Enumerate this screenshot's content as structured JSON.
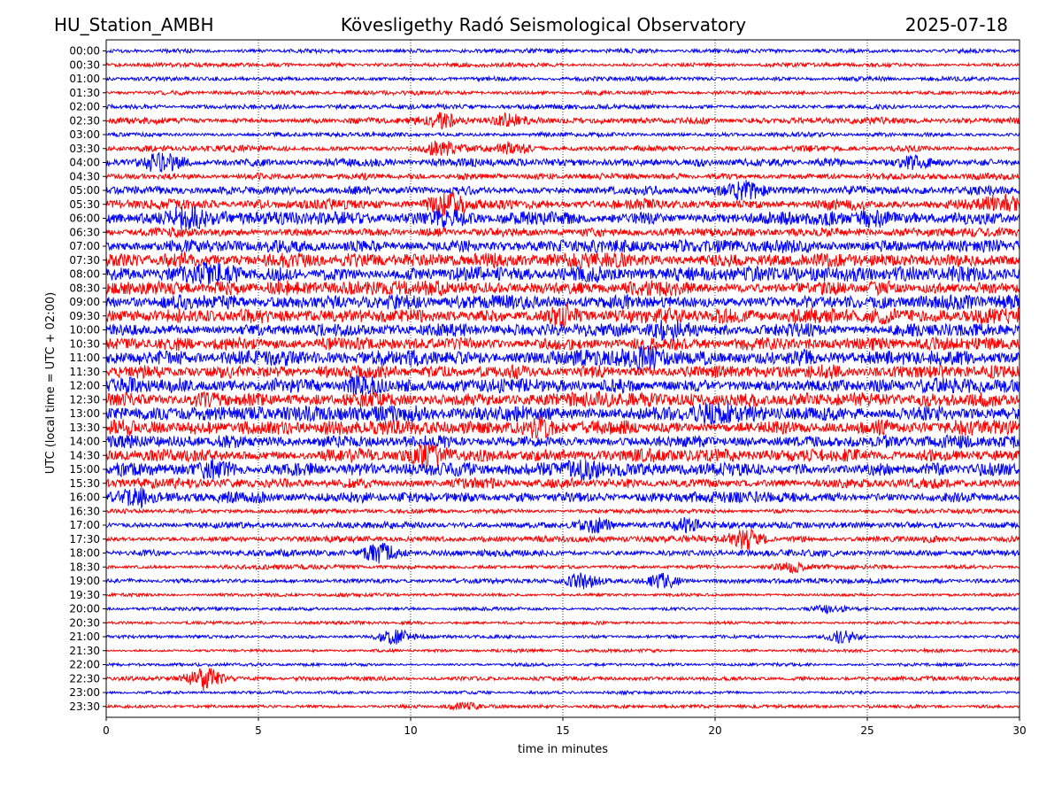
{
  "header": {
    "station": "HU_Station_AMBH",
    "observatory": "Kövesligethy Radó Seismological Observatory",
    "date": "2025-07-18"
  },
  "chart_data": {
    "type": "line",
    "title": "Kövesligethy Radó Seismological Observatory",
    "xlabel": "time in minutes",
    "ylabel": "UTC (local time = UTC + 02:00)",
    "xlim": [
      0,
      30
    ],
    "x_ticks": [
      "0",
      "5",
      "10",
      "15",
      "20",
      "25",
      "30"
    ],
    "grid": "vertical dotted lines at x ticks",
    "colors": {
      "even_row": "#0000ff",
      "odd_row": "#ff0000"
    },
    "rows": [
      {
        "label": "00:00",
        "amp": 2
      },
      {
        "label": "00:30",
        "amp": 2
      },
      {
        "label": "01:00",
        "amp": 2
      },
      {
        "label": "01:30",
        "amp": 2
      },
      {
        "label": "02:00",
        "amp": 2
      },
      {
        "label": "02:30",
        "amp": 3
      },
      {
        "label": "03:00",
        "amp": 2
      },
      {
        "label": "03:30",
        "amp": 3
      },
      {
        "label": "04:00",
        "amp": 4
      },
      {
        "label": "04:30",
        "amp": 3
      },
      {
        "label": "05:00",
        "amp": 4
      },
      {
        "label": "05:30",
        "amp": 5
      },
      {
        "label": "06:00",
        "amp": 6
      },
      {
        "label": "06:30",
        "amp": 4
      },
      {
        "label": "07:00",
        "amp": 6
      },
      {
        "label": "07:30",
        "amp": 7
      },
      {
        "label": "08:00",
        "amp": 7
      },
      {
        "label": "08:30",
        "amp": 7
      },
      {
        "label": "09:00",
        "amp": 7
      },
      {
        "label": "09:30",
        "amp": 7
      },
      {
        "label": "10:00",
        "amp": 6
      },
      {
        "label": "10:30",
        "amp": 6
      },
      {
        "label": "11:00",
        "amp": 7
      },
      {
        "label": "11:30",
        "amp": 6
      },
      {
        "label": "12:00",
        "amp": 7
      },
      {
        "label": "12:30",
        "amp": 7
      },
      {
        "label": "13:00",
        "amp": 7
      },
      {
        "label": "13:30",
        "amp": 7
      },
      {
        "label": "14:00",
        "amp": 6
      },
      {
        "label": "14:30",
        "amp": 6
      },
      {
        "label": "15:00",
        "amp": 6
      },
      {
        "label": "15:30",
        "amp": 5
      },
      {
        "label": "16:00",
        "amp": 5
      },
      {
        "label": "16:30",
        "amp": 2
      },
      {
        "label": "17:00",
        "amp": 3
      },
      {
        "label": "17:30",
        "amp": 3
      },
      {
        "label": "18:00",
        "amp": 3
      },
      {
        "label": "18:30",
        "amp": 2
      },
      {
        "label": "19:00",
        "amp": 2
      },
      {
        "label": "19:30",
        "amp": 1.5
      },
      {
        "label": "20:00",
        "amp": 1.5
      },
      {
        "label": "20:30",
        "amp": 1.5
      },
      {
        "label": "21:00",
        "amp": 1.5
      },
      {
        "label": "21:30",
        "amp": 1.5
      },
      {
        "label": "22:00",
        "amp": 1.5
      },
      {
        "label": "22:30",
        "amp": 2
      },
      {
        "label": "23:00",
        "amp": 1.5
      },
      {
        "label": "23:30",
        "amp": 1.5
      }
    ],
    "events": [
      {
        "row": "02:30",
        "x": 11,
        "amp": 7
      },
      {
        "row": "02:30",
        "x": 13.3,
        "amp": 6
      },
      {
        "row": "03:30",
        "x": 11,
        "amp": 6
      },
      {
        "row": "03:30",
        "x": 13.3,
        "amp": 5
      },
      {
        "row": "04:00",
        "x": 1.7,
        "amp": 9
      },
      {
        "row": "04:00",
        "x": 26.5,
        "amp": 6
      },
      {
        "row": "05:00",
        "x": 21,
        "amp": 7
      },
      {
        "row": "05:30",
        "x": 11.3,
        "amp": 11
      },
      {
        "row": "05:30",
        "x": 29.5,
        "amp": 8
      },
      {
        "row": "06:00",
        "x": 2.7,
        "amp": 10
      },
      {
        "row": "06:00",
        "x": 11.2,
        "amp": 9
      },
      {
        "row": "06:00",
        "x": 25.2,
        "amp": 8
      },
      {
        "row": "08:00",
        "x": 3.3,
        "amp": 10
      },
      {
        "row": "09:30",
        "x": 15,
        "amp": 8
      },
      {
        "row": "10:00",
        "x": 18.5,
        "amp": 9
      },
      {
        "row": "11:00",
        "x": 17.5,
        "amp": 9
      },
      {
        "row": "12:00",
        "x": 8.5,
        "amp": 9
      },
      {
        "row": "13:00",
        "x": 20,
        "amp": 9
      },
      {
        "row": "13:30",
        "x": 14.2,
        "amp": 9
      },
      {
        "row": "14:30",
        "x": 10.7,
        "amp": 11
      },
      {
        "row": "15:00",
        "x": 3.5,
        "amp": 9
      },
      {
        "row": "15:00",
        "x": 15.5,
        "amp": 8
      },
      {
        "row": "16:00",
        "x": 1,
        "amp": 9
      },
      {
        "row": "17:00",
        "x": 16,
        "amp": 7
      },
      {
        "row": "17:00",
        "x": 19,
        "amp": 6
      },
      {
        "row": "17:30",
        "x": 21,
        "amp": 10
      },
      {
        "row": "18:00",
        "x": 9,
        "amp": 10
      },
      {
        "row": "18:30",
        "x": 22.5,
        "amp": 5
      },
      {
        "row": "19:00",
        "x": 15.6,
        "amp": 8
      },
      {
        "row": "19:00",
        "x": 18.3,
        "amp": 7
      },
      {
        "row": "20:00",
        "x": 23.7,
        "amp": 4
      },
      {
        "row": "21:00",
        "x": 9.5,
        "amp": 8
      },
      {
        "row": "21:00",
        "x": 24.2,
        "amp": 7
      },
      {
        "row": "22:30",
        "x": 3.2,
        "amp": 12
      },
      {
        "row": "23:30",
        "x": 11.8,
        "amp": 3
      }
    ]
  }
}
